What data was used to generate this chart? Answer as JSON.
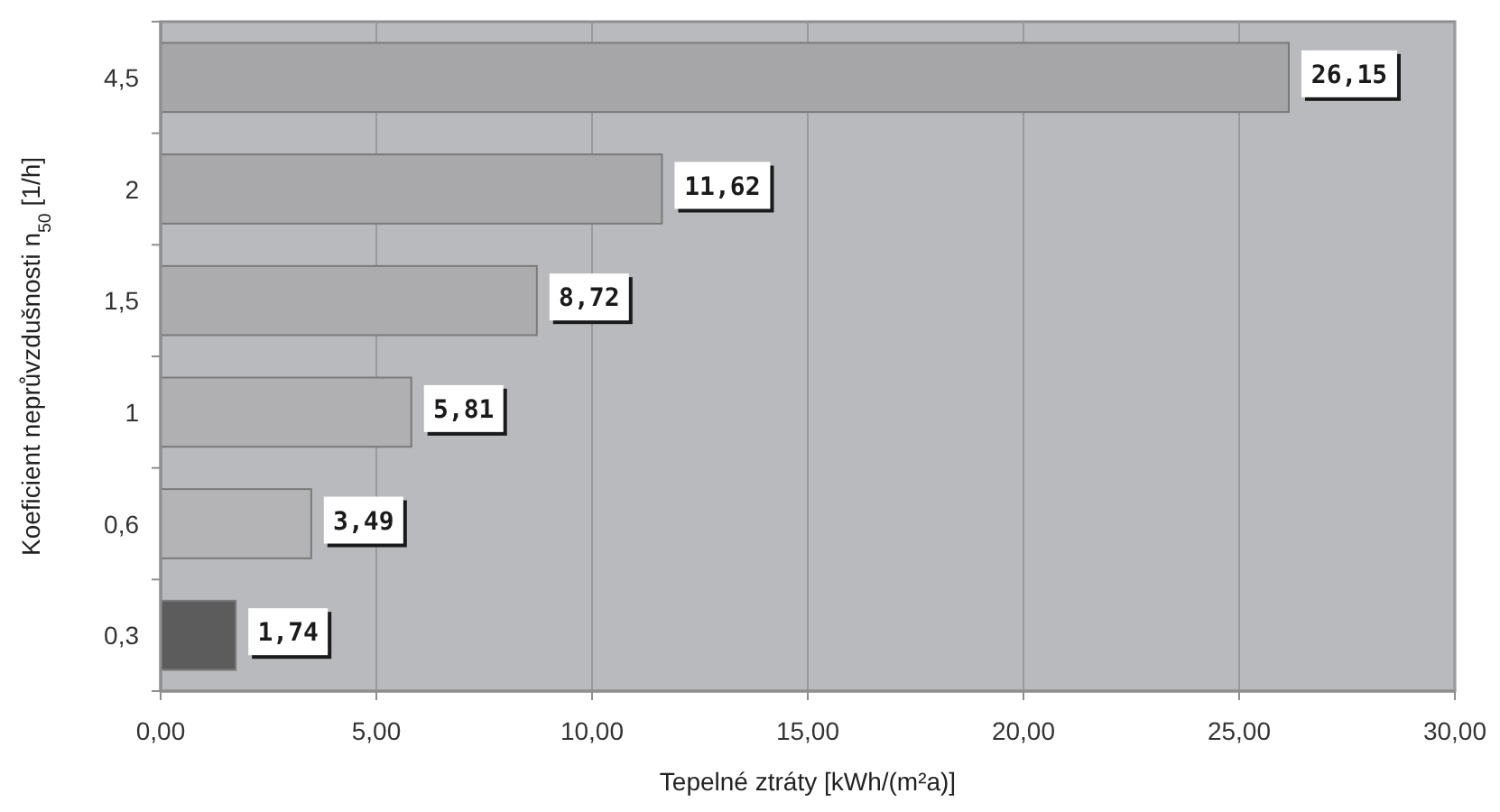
{
  "chart_data": {
    "type": "bar",
    "orientation": "horizontal",
    "xlabel": "Tepelné ztráty [kWh/(m²a)]",
    "ylabel": "Koeficient neprůvzdušnosti n$_{50}$ [1/h]",
    "categories": [
      "4,5",
      "2",
      "1,5",
      "1",
      "0,6",
      "0,3"
    ],
    "values": [
      26.15,
      11.62,
      8.72,
      5.81,
      3.49,
      1.74
    ],
    "colors": [
      "#a6a6a8",
      "#a9a9ab",
      "#acacae",
      "#b0b0b2",
      "#b4b4b6",
      "#5c5c5c"
    ],
    "value_labels": [
      "26,15",
      "11,62",
      "8,72",
      "5,81",
      "3,49",
      "1,74"
    ],
    "xlim": [
      0,
      30
    ],
    "xticks": [
      {
        "value": 0,
        "label": "0,00"
      },
      {
        "value": 5,
        "label": "5,00"
      },
      {
        "value": 10,
        "label": "10,00"
      },
      {
        "value": 15,
        "label": "15,00"
      },
      {
        "value": 20,
        "label": "20,00"
      },
      {
        "value": 25,
        "label": "25,00"
      },
      {
        "value": 30,
        "label": "30,00"
      }
    ],
    "grid": "x"
  }
}
